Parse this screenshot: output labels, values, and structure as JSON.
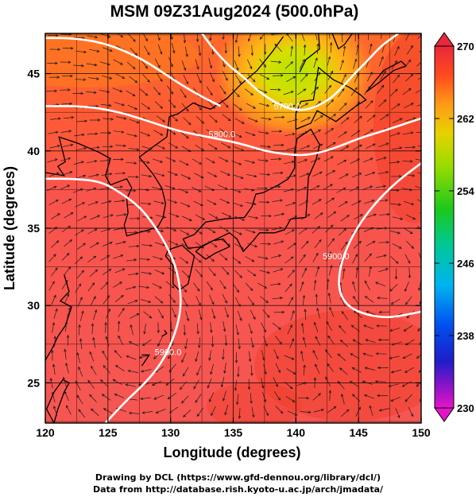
{
  "chart_data": {
    "type": "heatmap",
    "title": "MSM 09Z31Aug2024 (500.0hPa)",
    "xlabel": "Longitude (degrees)",
    "ylabel": "Latitude  (degrees)",
    "xlim": [
      120,
      150
    ],
    "ylim": [
      22.4,
      47.6
    ],
    "x_ticks": [
      120,
      125,
      130,
      135,
      140,
      145,
      150
    ],
    "y_ticks": [
      25,
      30,
      35,
      40,
      45
    ],
    "colorbar": {
      "ticks": [
        270,
        262,
        254,
        246,
        238,
        230
      ],
      "range": [
        230,
        270
      ]
    },
    "contours": [
      {
        "label": "5700.0",
        "points": [
          [
            132.5,
            47.6
          ],
          [
            133.5,
            46.5
          ],
          [
            134.8,
            45.4
          ],
          [
            135.8,
            44.8
          ],
          [
            136.8,
            44.0
          ],
          [
            138.0,
            43.3
          ],
          [
            139.2,
            42.8
          ],
          [
            140.3,
            42.6
          ],
          [
            141.5,
            42.8
          ],
          [
            142.8,
            43.4
          ],
          [
            143.8,
            44.2
          ],
          [
            144.8,
            45.1
          ],
          [
            145.8,
            45.9
          ],
          [
            146.8,
            46.8
          ],
          [
            148.2,
            47.6
          ]
        ],
        "label_at": [
          139.3,
          42.9
        ]
      },
      {
        "label": "5800.0",
        "points": [
          [
            120,
            47.3
          ],
          [
            122,
            47.3
          ],
          [
            124,
            47.1
          ],
          [
            126,
            46.6
          ],
          [
            128,
            45.8
          ],
          [
            129.5,
            45.0
          ],
          [
            131,
            44.2
          ],
          [
            132.5,
            43.5
          ],
          [
            134,
            42.9
          ]
        ]
      },
      {
        "label": "5800.0",
        "points": [
          [
            120,
            42.9
          ],
          [
            123,
            42.9
          ],
          [
            125.5,
            42.6
          ],
          [
            128,
            42.0
          ],
          [
            130.5,
            41.3
          ],
          [
            133,
            40.9
          ],
          [
            135.5,
            40.5
          ],
          [
            137.5,
            40.0
          ],
          [
            139,
            39.8
          ],
          [
            140.5,
            39.7
          ],
          [
            142,
            39.9
          ],
          [
            143.5,
            40.3
          ],
          [
            145,
            40.8
          ],
          [
            147,
            41.3
          ],
          [
            148.5,
            41.7
          ],
          [
            150,
            42.1
          ]
        ],
        "label_at": [
          134.1,
          41.1
        ]
      },
      {
        "label": "5900.0",
        "points": [
          [
            120,
            38.2
          ],
          [
            122.5,
            38.2
          ],
          [
            124.5,
            38.0
          ],
          [
            126,
            37.3
          ],
          [
            127.5,
            36.4
          ],
          [
            128.6,
            35.3
          ],
          [
            129.6,
            34.0
          ],
          [
            130.4,
            32.6
          ],
          [
            130.8,
            31.0
          ],
          [
            130.8,
            29.5
          ],
          [
            130.2,
            27.8
          ],
          [
            129.3,
            26.3
          ],
          [
            128.0,
            25.0
          ],
          [
            126.4,
            23.8
          ],
          [
            124.8,
            22.4
          ]
        ],
        "label_at": [
          129.8,
          27.0
        ]
      },
      {
        "label": "5900.0",
        "points": [
          [
            150,
            39.2
          ],
          [
            148.5,
            38.3
          ],
          [
            147.0,
            37.2
          ],
          [
            145.5,
            35.8
          ],
          [
            144.3,
            34.2
          ],
          [
            143.5,
            32.5
          ],
          [
            143.4,
            30.9
          ],
          [
            144.2,
            29.9
          ],
          [
            145.6,
            29.4
          ],
          [
            147.3,
            29.2
          ],
          [
            148.8,
            29.4
          ],
          [
            150,
            29.6
          ]
        ],
        "label_at": [
          143.2,
          33.2
        ]
      }
    ]
  },
  "credits": {
    "line1": "Drawing by DCL (https://www.gfd-dennou.org/library/dcl/)",
    "line2": "Data from http://database.rish.kyoto-u.ac.jp/arch/jmadata/"
  }
}
